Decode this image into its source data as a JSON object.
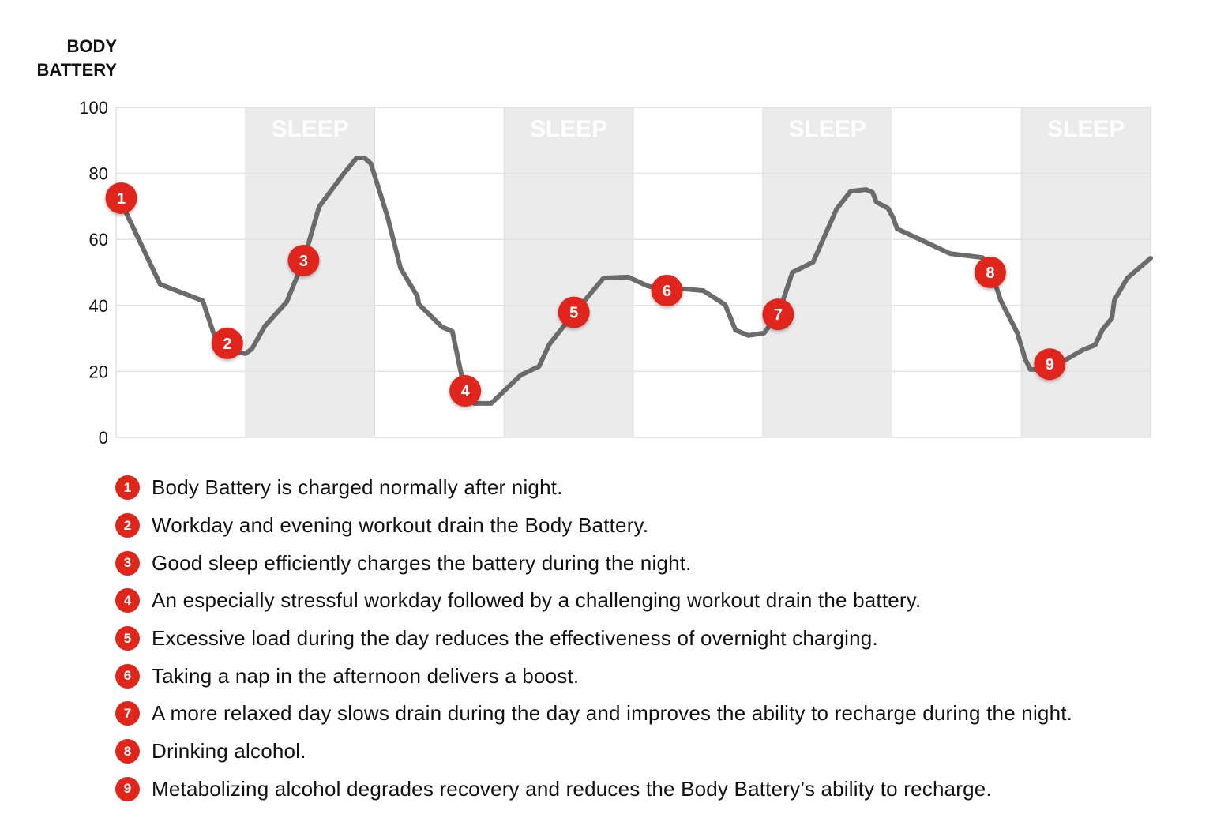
{
  "chart_data": {
    "type": "line",
    "title": "",
    "ylabel": "BODY BATTERY",
    "xlabel": "",
    "ylim": [
      0,
      100
    ],
    "xlim": [
      0,
      8
    ],
    "yticks": [
      "0",
      "20",
      "40",
      "60",
      "80",
      "100"
    ],
    "grid": true,
    "bands": [
      {
        "label": "SLEEP",
        "from": 1,
        "to": 2
      },
      {
        "label": "SLEEP",
        "from": 3,
        "to": 4
      },
      {
        "label": "SLEEP",
        "from": 5,
        "to": 6
      },
      {
        "label": "SLEEP",
        "from": 7,
        "to": 8
      }
    ],
    "series": [
      {
        "x": [
          0.03,
          0.34,
          0.67,
          0.76,
          0.87,
          1.0,
          1.05,
          1.15,
          1.32,
          1.45,
          1.57,
          1.76,
          1.86,
          1.92,
          1.97,
          2.1,
          2.2,
          2.33,
          2.34,
          2.52,
          2.6,
          2.69,
          2.77,
          2.9,
          3.13,
          3.27,
          3.35,
          3.54,
          3.77,
          3.96,
          4.11,
          4.26,
          4.39,
          4.54,
          4.71,
          4.79,
          4.89,
          5.01,
          5.12,
          5.23,
          5.39,
          5.57,
          5.68,
          5.8,
          5.85,
          5.88,
          5.97,
          6.01,
          6.04,
          6.15,
          6.45,
          6.7,
          6.77,
          6.84,
          6.97,
          7.03,
          7.07,
          7.22,
          7.36,
          7.48,
          7.57,
          7.63,
          7.7,
          7.72,
          7.82,
          8.0
        ],
        "y": [
          72,
          46.4,
          41.4,
          30.9,
          26.3,
          25.4,
          26.8,
          33.7,
          41.1,
          53.6,
          69.9,
          79.9,
          84.7,
          84.7,
          83,
          66.7,
          51.2,
          42.8,
          40.4,
          33.5,
          32.1,
          15.3,
          10.3,
          10.3,
          18.9,
          21.5,
          28.2,
          37.6,
          48.3,
          48.6,
          45.9,
          44.5,
          45,
          44.5,
          40.2,
          32.5,
          30.9,
          31.6,
          37.3,
          50,
          53.1,
          69.1,
          74.6,
          75.1,
          74.2,
          71.3,
          69.4,
          66.5,
          63.2,
          61.2,
          55.7,
          54.5,
          50,
          41.6,
          31.6,
          23.7,
          20.6,
          20.6,
          23.9,
          26.6,
          28,
          32.8,
          36.1,
          41.6,
          48.3,
          54.3
        ]
      }
    ],
    "markers": [
      {
        "label": "1",
        "x": 0.04,
        "y": 72.5
      },
      {
        "label": "2",
        "x": 0.86,
        "y": 28.5
      },
      {
        "label": "3",
        "x": 1.45,
        "y": 53.6
      },
      {
        "label": "4",
        "x": 2.7,
        "y": 14.1
      },
      {
        "label": "5",
        "x": 3.54,
        "y": 37.9
      },
      {
        "label": "6",
        "x": 4.26,
        "y": 44.5
      },
      {
        "label": "7",
        "x": 5.12,
        "y": 37.3
      },
      {
        "label": "8",
        "x": 6.76,
        "y": 50
      },
      {
        "label": "9",
        "x": 7.22,
        "y": 22.2
      }
    ],
    "colors": {
      "line": "#6b6b6b",
      "marker": "#e0261b",
      "band": "#ebebeb",
      "grid": "#e2e2e2"
    }
  },
  "ytitle": {
    "line1": "BODY",
    "line2": "BATTERY"
  },
  "legend": [
    {
      "n": "1",
      "text": "Body Battery is charged normally after night."
    },
    {
      "n": "2",
      "text": "Workday and evening workout drain the Body Battery."
    },
    {
      "n": "3",
      "text": "Good sleep efficiently charges the battery during the night."
    },
    {
      "n": "4",
      "text": "An especially stressful workday followed by a challenging workout drain the battery."
    },
    {
      "n": "5",
      "text": "Excessive load during the day reduces the effectiveness of overnight charging."
    },
    {
      "n": "6",
      "text": "Taking a nap in the afternoon delivers a boost."
    },
    {
      "n": "7",
      "text": "A more relaxed day slows drain during the day and improves the ability to recharge during the night."
    },
    {
      "n": "8",
      "text": "Drinking alcohol."
    },
    {
      "n": "9",
      "text": " Metabolizing alcohol degrades recovery and reduces the Body Battery’s ability to recharge."
    }
  ]
}
